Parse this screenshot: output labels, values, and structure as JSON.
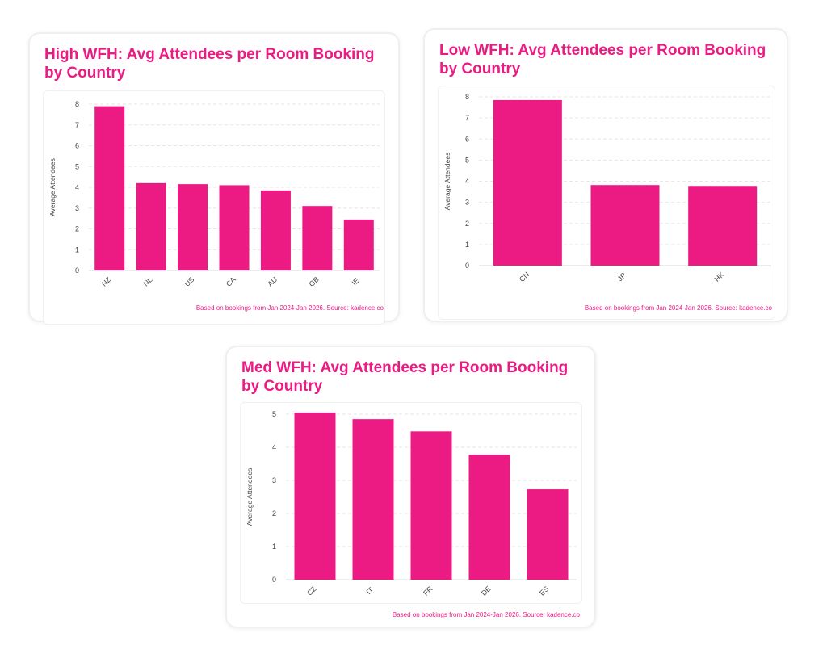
{
  "chart_data": [
    {
      "id": "high",
      "type": "bar",
      "title": "High WFH: Avg Attendees per Room Booking by Country",
      "title_lines": [
        "High WFH: Avg Attendees per Room Booking",
        "by Country"
      ],
      "ylabel": "Average Attendees",
      "xlabel": "",
      "categories": [
        "NZ",
        "NL",
        "US",
        "CA",
        "AU",
        "GB",
        "IE"
      ],
      "values": [
        7.9,
        4.2,
        4.15,
        4.1,
        3.85,
        3.1,
        2.45
      ],
      "ylim": [
        0,
        8
      ],
      "yticks": [
        0,
        1,
        2,
        3,
        4,
        5,
        6,
        7,
        8
      ],
      "grid": true,
      "legend": "none",
      "bar_color": "#ec1a83",
      "footnote": "Based on bookings from Jan 2024-Jan 2026. Source: kadence.co"
    },
    {
      "id": "low",
      "type": "bar",
      "title": "Low WFH: Avg Attendees per Room Booking by Country",
      "title_lines": [
        "Low WFH: Avg Attendees per Room Booking",
        "by Country"
      ],
      "ylabel": "Average Attendees",
      "xlabel": "",
      "categories": [
        "CN",
        "JP",
        "HK"
      ],
      "values": [
        7.85,
        3.82,
        3.78
      ],
      "ylim": [
        0,
        8
      ],
      "yticks": [
        0,
        1,
        2,
        3,
        4,
        5,
        6,
        7,
        8
      ],
      "grid": true,
      "legend": "none",
      "bar_color": "#ec1a83",
      "footnote": "Based on bookings from Jan 2024-Jan 2026. Source: kadence.co"
    },
    {
      "id": "med",
      "type": "bar",
      "title": "Med WFH: Avg Attendees per Room Booking by Country",
      "title_lines": [
        "Med WFH: Avg Attendees per Room Booking",
        "by Country"
      ],
      "ylabel": "Average Attendees",
      "xlabel": "",
      "categories": [
        "CZ",
        "IT",
        "FR",
        "DE",
        "ES"
      ],
      "values": [
        5.05,
        4.85,
        4.48,
        3.78,
        2.73
      ],
      "ylim": [
        0,
        5
      ],
      "yticks": [
        0,
        1,
        2,
        3,
        4,
        5
      ],
      "grid": true,
      "legend": "none",
      "bar_color": "#ec1a83",
      "footnote": "Based on bookings from Jan 2024-Jan 2026. Source: kadence.co"
    }
  ]
}
